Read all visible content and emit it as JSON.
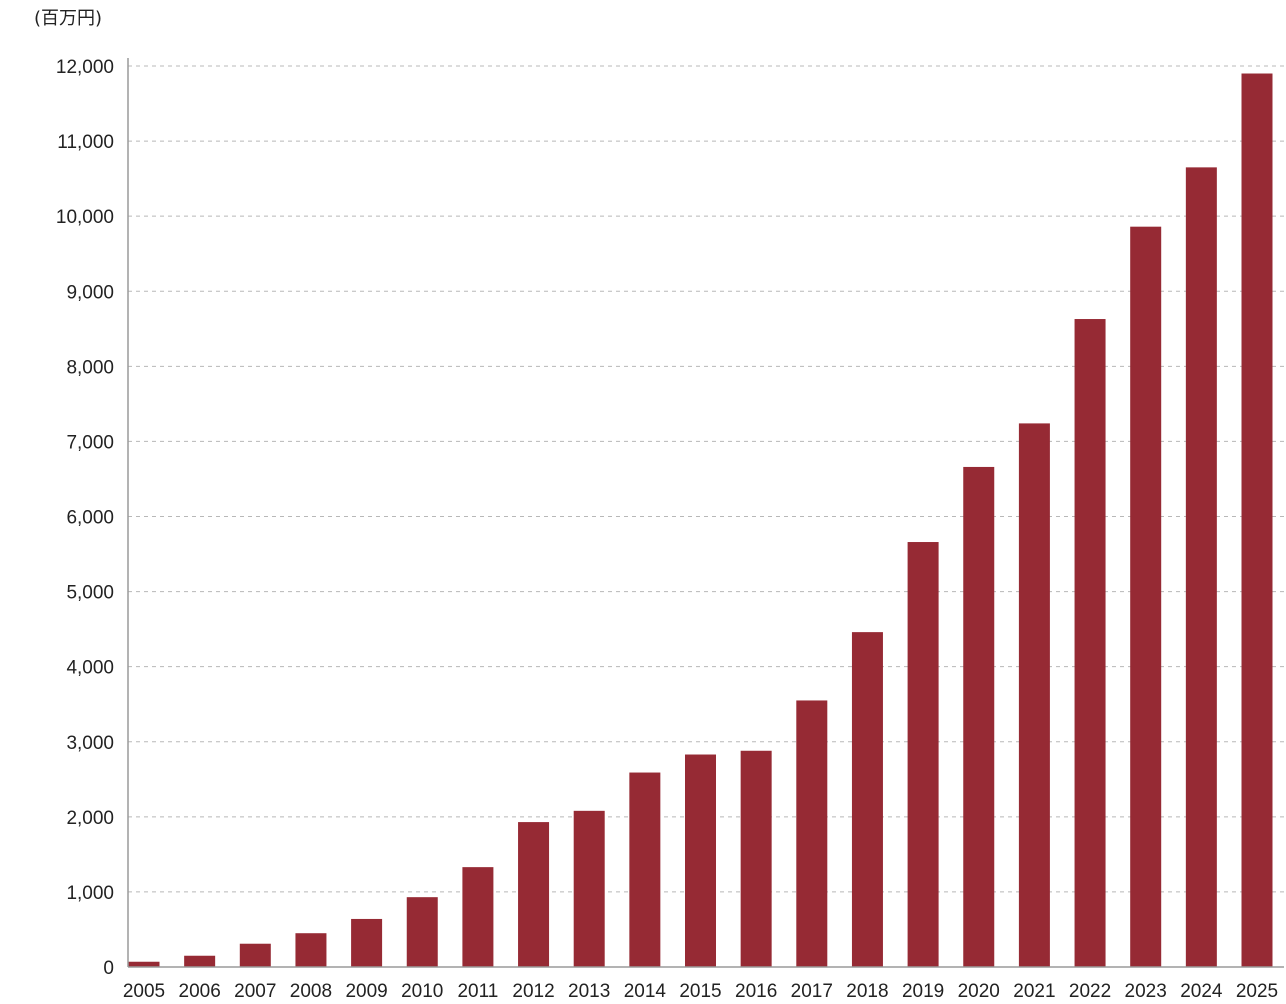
{
  "chart_data": {
    "type": "bar",
    "unit_label": "(百万円)",
    "categories": [
      "2005",
      "2006",
      "2007",
      "2008",
      "2009",
      "2010",
      "2011",
      "2012",
      "2013",
      "2014",
      "2015",
      "2016",
      "2017",
      "2018",
      "2019",
      "2020",
      "2021",
      "2022",
      "2023",
      "2024",
      "2025"
    ],
    "values": [
      70,
      150,
      310,
      450,
      640,
      930,
      1330,
      1930,
      2080,
      2590,
      2830,
      2880,
      3550,
      4460,
      5660,
      6660,
      7240,
      8630,
      9860,
      10650,
      11900
    ],
    "ylim": [
      0,
      12000
    ],
    "yticks": [
      {
        "value": 0,
        "label": "0"
      },
      {
        "value": 1000,
        "label": "1,000"
      },
      {
        "value": 2000,
        "label": "2,000"
      },
      {
        "value": 3000,
        "label": "3,000"
      },
      {
        "value": 4000,
        "label": "4,000"
      },
      {
        "value": 5000,
        "label": "5,000"
      },
      {
        "value": 6000,
        "label": "6,000"
      },
      {
        "value": 7000,
        "label": "7,000"
      },
      {
        "value": 8000,
        "label": "8,000"
      },
      {
        "value": 9000,
        "label": "9,000"
      },
      {
        "value": 10000,
        "label": "10,000"
      },
      {
        "value": 11000,
        "label": "11,000"
      },
      {
        "value": 12000,
        "label": "12,000"
      }
    ],
    "grid": true,
    "legend": "none",
    "bar_color": "#962a34"
  }
}
